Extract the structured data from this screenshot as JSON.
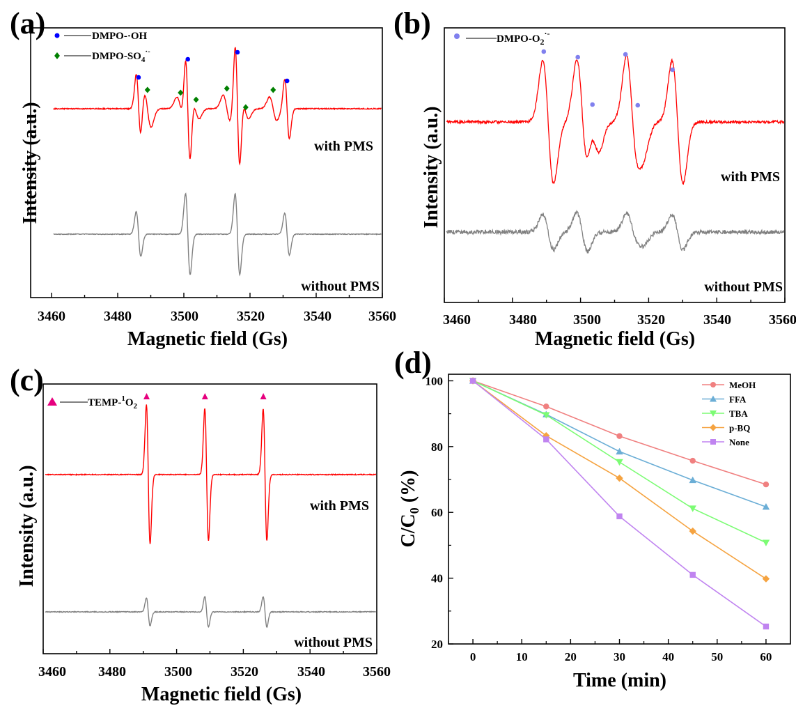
{
  "figure": {
    "colors": {
      "with_pms": "#ff0000",
      "without_pms": "#808080"
    },
    "panels": [
      {
        "label": "(a)"
      },
      {
        "label": "(b)"
      },
      {
        "label": "(c)"
      },
      {
        "label": "(d)"
      }
    ]
  },
  "chart_data": [
    {
      "type": "line",
      "panel": "(a)",
      "xlabel": "Magnetic field (Gs)",
      "ylabel": "Intensity (a.u.)",
      "xlim": [
        3460,
        3560
      ],
      "xticks": [
        "3460",
        "3480",
        "3500",
        "3520",
        "3540",
        "3560"
      ],
      "series": [
        {
          "name": "with PMS",
          "color": "#ff0000",
          "lines": [
            {
              "x": 3486.3,
              "amp": 1.0
            },
            {
              "x": 3501.2,
              "amp": 1.7
            },
            {
              "x": 3516.2,
              "amp": 1.9
            },
            {
              "x": 3531.2,
              "amp": 0.9
            }
          ],
          "broad_lines": [
            {
              "x": 3489.0,
              "amp": 0.55
            },
            {
              "x": 3499.0,
              "amp": 0.35
            },
            {
              "x": 3503.5,
              "amp": 0.3
            },
            {
              "x": 3513.0,
              "amp": 0.4
            },
            {
              "x": 3518.5,
              "amp": 0.3
            },
            {
              "x": 3527.0,
              "amp": 0.35
            }
          ]
        },
        {
          "name": "without PMS",
          "color": "#808080",
          "lines": [
            {
              "x": 3486.3,
              "amp": 0.8
            },
            {
              "x": 3501.2,
              "amp": 1.45
            },
            {
              "x": 3516.2,
              "amp": 1.45
            },
            {
              "x": 3531.2,
              "amp": 0.75
            }
          ]
        }
      ],
      "legend": [
        {
          "label": "DMPO-·OH",
          "marker": "circle",
          "color": "#0000ff"
        },
        {
          "label": "DMPO-SO4·-",
          "marker": "diamond",
          "color": "#008000"
        }
      ],
      "markers": [
        {
          "x": 3486.3,
          "kind": "circle"
        },
        {
          "x": 3501.2,
          "kind": "circle"
        },
        {
          "x": 3516.2,
          "kind": "circle"
        },
        {
          "x": 3531.2,
          "kind": "circle"
        },
        {
          "x": 3489.0,
          "kind": "diamond"
        },
        {
          "x": 3499.0,
          "kind": "diamond"
        },
        {
          "x": 3503.7,
          "kind": "diamond"
        },
        {
          "x": 3513.0,
          "kind": "diamond"
        },
        {
          "x": 3518.7,
          "kind": "diamond"
        },
        {
          "x": 3527.0,
          "kind": "diamond"
        }
      ]
    },
    {
      "type": "line",
      "panel": "(b)",
      "xlabel": "Magnetic field (Gs)",
      "ylabel": "Intensity (a.u.)",
      "xlim": [
        3460,
        3560
      ],
      "xticks": [
        "3460",
        "3480",
        "3500",
        "3520",
        "3540",
        "3560"
      ],
      "series": [
        {
          "name": "with PMS",
          "color": "#ff0000",
          "lines": [
            {
              "x": 3490.5,
              "amp": 1.0
            },
            {
              "x": 3504.0,
              "amp": 0.45
            },
            {
              "x": 3500.5,
              "amp": 1.0
            },
            {
              "x": 3515.0,
              "amp": 1.0
            },
            {
              "x": 3517.5,
              "amp": 0.4
            },
            {
              "x": 3528.5,
              "amp": 1.0
            }
          ]
        },
        {
          "name": "without PMS",
          "color": "#808080",
          "lines": [
            {
              "x": 3490.5,
              "amp": 0.55
            },
            {
              "x": 3500.5,
              "amp": 0.6
            },
            {
              "x": 3515.0,
              "amp": 0.55
            },
            {
              "x": 3517.5,
              "amp": 0.3
            },
            {
              "x": 3528.5,
              "amp": 0.55
            }
          ]
        }
      ],
      "legend": [
        {
          "label": "DMPO-O2·-",
          "marker": "circle",
          "color": "#8080ee"
        }
      ],
      "markers": [
        {
          "x": 3489.2,
          "kind": "circle"
        },
        {
          "x": 3499.2,
          "kind": "circle"
        },
        {
          "x": 3503.5,
          "kind": "circle"
        },
        {
          "x": 3513.2,
          "kind": "circle"
        },
        {
          "x": 3516.8,
          "kind": "circle"
        },
        {
          "x": 3527.0,
          "kind": "circle"
        }
      ]
    },
    {
      "type": "line",
      "panel": "(c)",
      "xlabel": "Magnetic field (Gs)",
      "ylabel": "Intensity (a.u.)",
      "xlim": [
        3460,
        3560
      ],
      "xticks": [
        "3460",
        "3480",
        "3500",
        "3520",
        "3540",
        "3560"
      ],
      "series": [
        {
          "name": "with PMS",
          "color": "#ff0000",
          "lines": [
            {
              "x": 3491.5,
              "amp": 1.0
            },
            {
              "x": 3509.0,
              "amp": 0.95
            },
            {
              "x": 3526.5,
              "amp": 0.95
            }
          ]
        },
        {
          "name": "without PMS",
          "color": "#808080",
          "lines": [
            {
              "x": 3491.5,
              "amp": 0.2
            },
            {
              "x": 3509.0,
              "amp": 0.22
            },
            {
              "x": 3526.5,
              "amp": 0.22
            }
          ]
        }
      ],
      "legend": [
        {
          "label": "TEMP-1O2",
          "marker": "triangle",
          "color": "#e6007e"
        }
      ],
      "markers": [
        {
          "x": 3491.0,
          "kind": "triangle"
        },
        {
          "x": 3508.5,
          "kind": "triangle"
        },
        {
          "x": 3526.0,
          "kind": "triangle"
        }
      ]
    },
    {
      "type": "line",
      "panel": "(d)",
      "xlabel": "Time (min)",
      "ylabel": "C/C0 (%)",
      "xlim": [
        -5,
        65
      ],
      "ylim": [
        20,
        102
      ],
      "xticks": [
        0,
        10,
        20,
        30,
        40,
        50,
        60
      ],
      "yticks": [
        20,
        40,
        60,
        80,
        100
      ],
      "x": [
        0,
        15,
        30,
        45,
        60
      ],
      "series": [
        {
          "name": "MeOH",
          "color": "#f08080",
          "marker": "circle",
          "values": [
            100,
            92.2,
            83.2,
            75.7,
            68.5
          ]
        },
        {
          "name": "FFA",
          "color": "#6baed6",
          "marker": "triangle",
          "values": [
            100,
            89.8,
            78.5,
            69.8,
            61.7
          ]
        },
        {
          "name": "TBA",
          "color": "#7cfc74",
          "marker": "triangle-down",
          "values": [
            100,
            89.6,
            75.3,
            61.2,
            50.8
          ]
        },
        {
          "name": "p-BQ",
          "color": "#f5a340",
          "marker": "diamond",
          "values": [
            100,
            83.3,
            70.4,
            54.3,
            39.8
          ]
        },
        {
          "name": "None",
          "color": "#c084f0",
          "marker": "square",
          "values": [
            100,
            82.2,
            58.8,
            41.0,
            25.3
          ]
        }
      ],
      "legend_position": "top-right"
    }
  ],
  "labels": {
    "a": {
      "xlabel": "Magnetic field (Gs)",
      "ylabel": "Intensity (a.u.)",
      "with": "with PMS",
      "without": "without PMS",
      "legend1_line": "DMPO-·OH",
      "legend2_main": "DMPO-SO",
      "legend2_sub": "4",
      "legend2_sup": "·-"
    },
    "b": {
      "xlabel": "Magnetic field (Gs)",
      "ylabel": "Intensity (a.u.)",
      "with": "with PMS",
      "without": "without PMS",
      "legend1_main": "DMPO-O",
      "legend1_sub": "2",
      "legend1_sup": "·-"
    },
    "c": {
      "xlabel": "Magnetic field (Gs)",
      "ylabel": "Intensity (a.u.)",
      "with": "with PMS",
      "without": "without PMS",
      "legend1_main": "TEMP-",
      "legend1_sup": "1",
      "legend1_end": "O",
      "legend1_sub": "2"
    },
    "d": {
      "xlabel": "Time (min)",
      "ylabel_main": "C/C",
      "ylabel_sub": "0",
      "ylabel_end": " (%)"
    },
    "xticks_field": [
      "3460",
      "3480",
      "3500",
      "3520",
      "3540",
      "3560"
    ]
  }
}
